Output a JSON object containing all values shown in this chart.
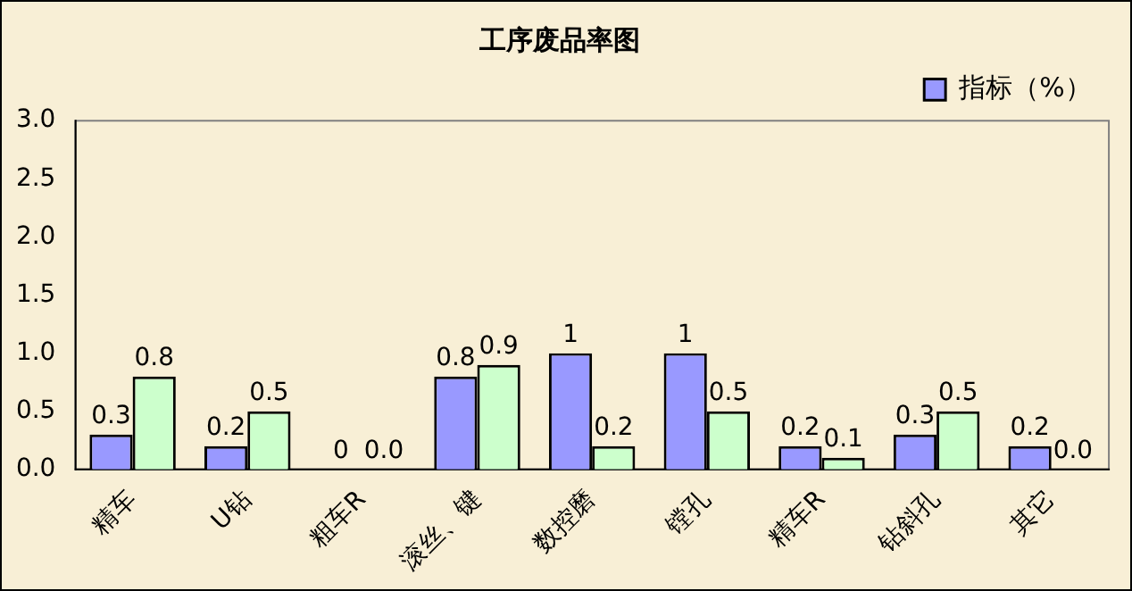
{
  "chart_data": {
    "type": "bar",
    "title": "工序废品率图",
    "categories": [
      "精车",
      "U钻",
      "粗车R",
      "滚丝、键",
      "数控磨",
      "镗孔",
      "精车R",
      "钻斜孔",
      "其它"
    ],
    "series": [
      {
        "name": "指标（%）",
        "color": "#9999ff",
        "values": [
          0.3,
          0.2,
          0,
          0.8,
          1,
          1,
          0.2,
          0.3,
          0.2
        ],
        "value_labels": [
          "0.3",
          "0.2",
          "0",
          "0.8",
          "1",
          "1",
          "0.2",
          "0.3",
          "0.2"
        ]
      },
      {
        "color": "#ccffcc",
        "values": [
          0.8,
          0.5,
          0,
          0.9,
          0.2,
          0.5,
          0.1,
          0.5,
          0
        ],
        "value_labels": [
          "0.8",
          "0.5",
          "0.0",
          "0.9",
          "0.2",
          "0.5",
          "0.1",
          "0.5",
          "0.0"
        ]
      }
    ],
    "ylim": [
      0,
      3
    ],
    "yticks": [
      {
        "value": 0,
        "label": "0.0"
      },
      {
        "value": 0.5,
        "label": "0.5"
      },
      {
        "value": 1,
        "label": "1.0"
      },
      {
        "value": 1.5,
        "label": "1.5"
      },
      {
        "value": 2,
        "label": "2.0"
      },
      {
        "value": 2.5,
        "label": "2.5"
      },
      {
        "value": 3,
        "label": "3.0"
      }
    ],
    "grid": false,
    "legend": "top right"
  }
}
